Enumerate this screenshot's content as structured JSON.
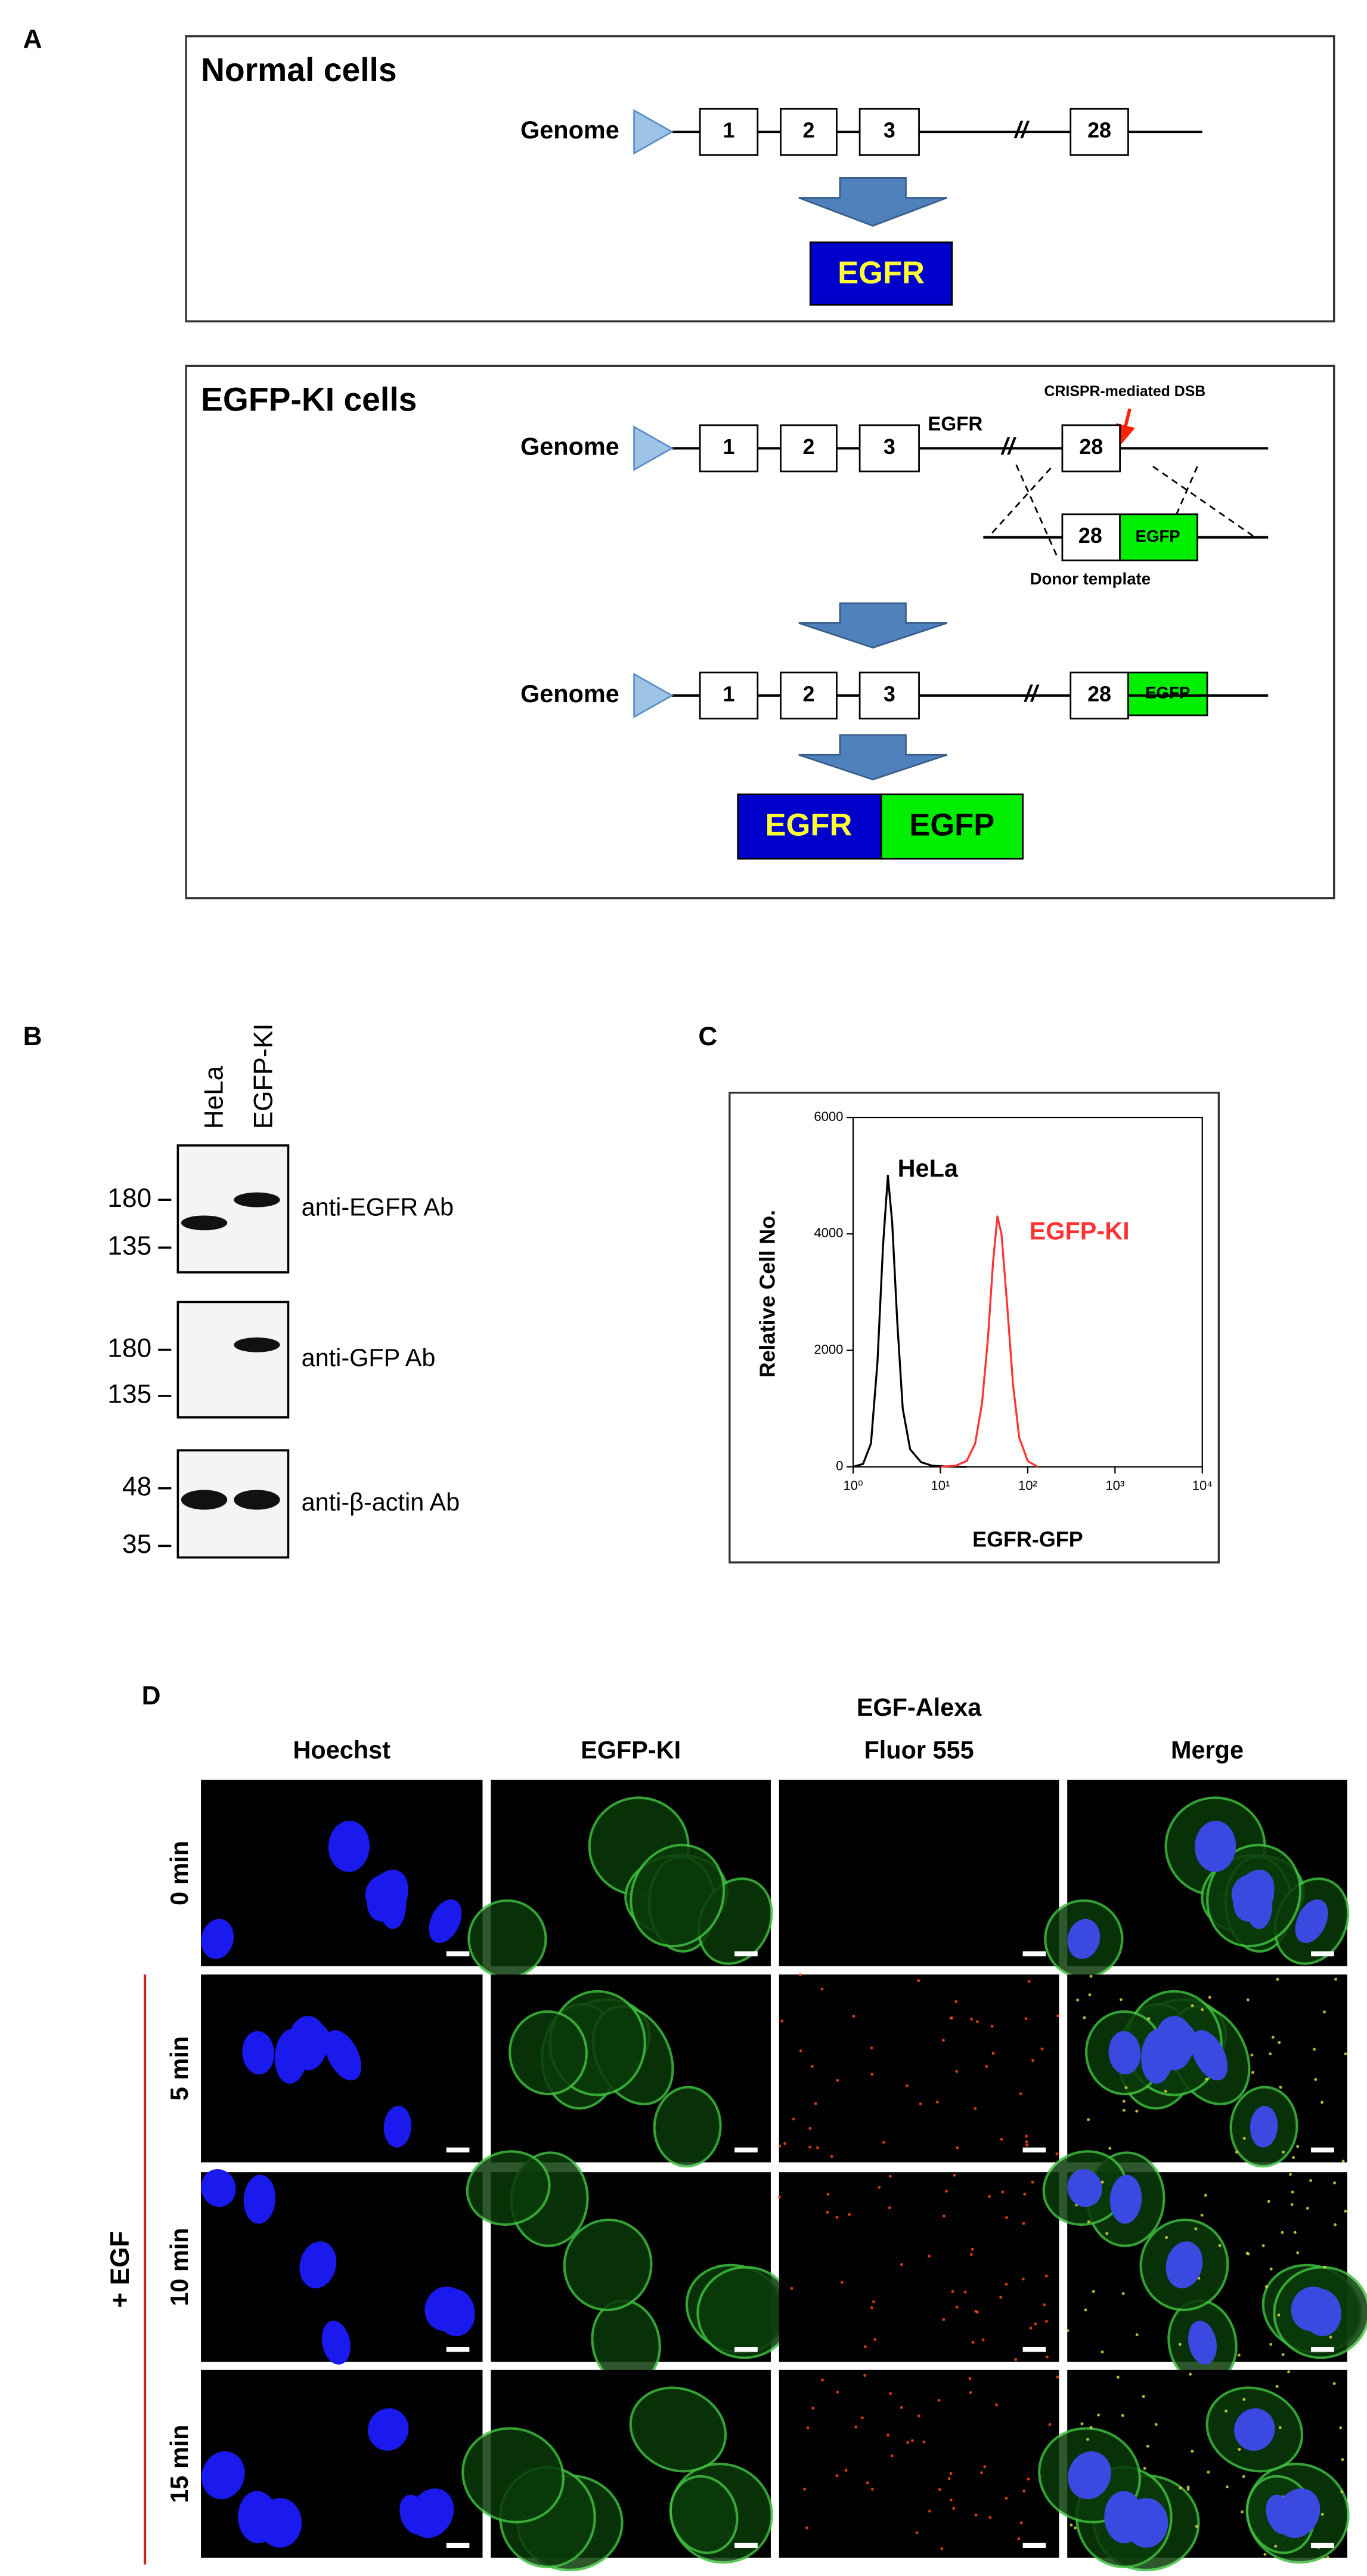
{
  "panel_a": {
    "label": "A",
    "normal": {
      "title": "Normal cells",
      "genome": "Genome",
      "exons": [
        1,
        2,
        3,
        28
      ],
      "protein": "EGFR"
    },
    "ki": {
      "title": "EGFP-KI cells",
      "genome": "Genome",
      "exons": [
        1,
        2,
        3,
        28
      ],
      "gene": "EGFR",
      "dsb": "CRISPR-mediated DSB",
      "donor_exon": 28,
      "donor_tag": "EGFP",
      "donor": "Donor template",
      "result_genome": "Genome",
      "result_exons": [
        1,
        2,
        3,
        28
      ],
      "result_tag": "EGFP",
      "protein": [
        "EGFR",
        "EGFP"
      ]
    }
  },
  "panel_b": {
    "label": "B",
    "lanes": [
      "HeLa",
      "EGFP-KI"
    ],
    "blots": [
      {
        "antibody": "anti-EGFR Ab",
        "markers": [
          180,
          135
        ]
      },
      {
        "antibody": "anti-GFP Ab",
        "markers": [
          180,
          135
        ]
      },
      {
        "antibody": "anti-β-actin Ab",
        "markers": [
          48,
          35
        ]
      }
    ]
  },
  "chart_data": {
    "type": "line",
    "panel_label": "C",
    "xlabel": "EGFR-GFP",
    "ylabel": "Relative Cell No.",
    "xscale": "log",
    "xlim": [
      1,
      10000
    ],
    "xticks": [
      {
        "value": 1,
        "label": "10⁰"
      },
      {
        "value": 10,
        "label": "10¹"
      },
      {
        "value": 100,
        "label": "10²"
      },
      {
        "value": 1000,
        "label": "10³"
      },
      {
        "value": 10000,
        "label": "10⁴"
      }
    ],
    "ylim": [
      0,
      6000
    ],
    "yticks": [
      0,
      2000,
      4000,
      6000
    ],
    "series": [
      {
        "name": "HeLa",
        "color": "#000000",
        "x": [
          1,
          1.3,
          1.6,
          1.9,
          2.2,
          2.5,
          2.8,
          3.2,
          3.7,
          4.5,
          6,
          8,
          12,
          20
        ],
        "values": [
          0,
          50,
          400,
          1800,
          3800,
          5000,
          4200,
          2500,
          1000,
          300,
          80,
          20,
          5,
          0
        ]
      },
      {
        "name": "EGFP-KI",
        "color": "#ff3333",
        "x": [
          10,
          15,
          20,
          25,
          30,
          35,
          40,
          45,
          50,
          58,
          68,
          80,
          100,
          130
        ],
        "values": [
          0,
          20,
          100,
          400,
          1100,
          2200,
          3500,
          4300,
          4000,
          2800,
          1400,
          500,
          100,
          0
        ]
      }
    ]
  },
  "panel_d": {
    "label": "D",
    "columns": [
      [
        "Hoechst"
      ],
      [
        "EGFP-KI"
      ],
      [
        "EGF-Alexa",
        "Fluor 555"
      ],
      [
        "Merge"
      ]
    ],
    "rows": [
      "0 min",
      "5 min",
      "10 min",
      "15 min"
    ],
    "treatment": "+ EGF"
  }
}
